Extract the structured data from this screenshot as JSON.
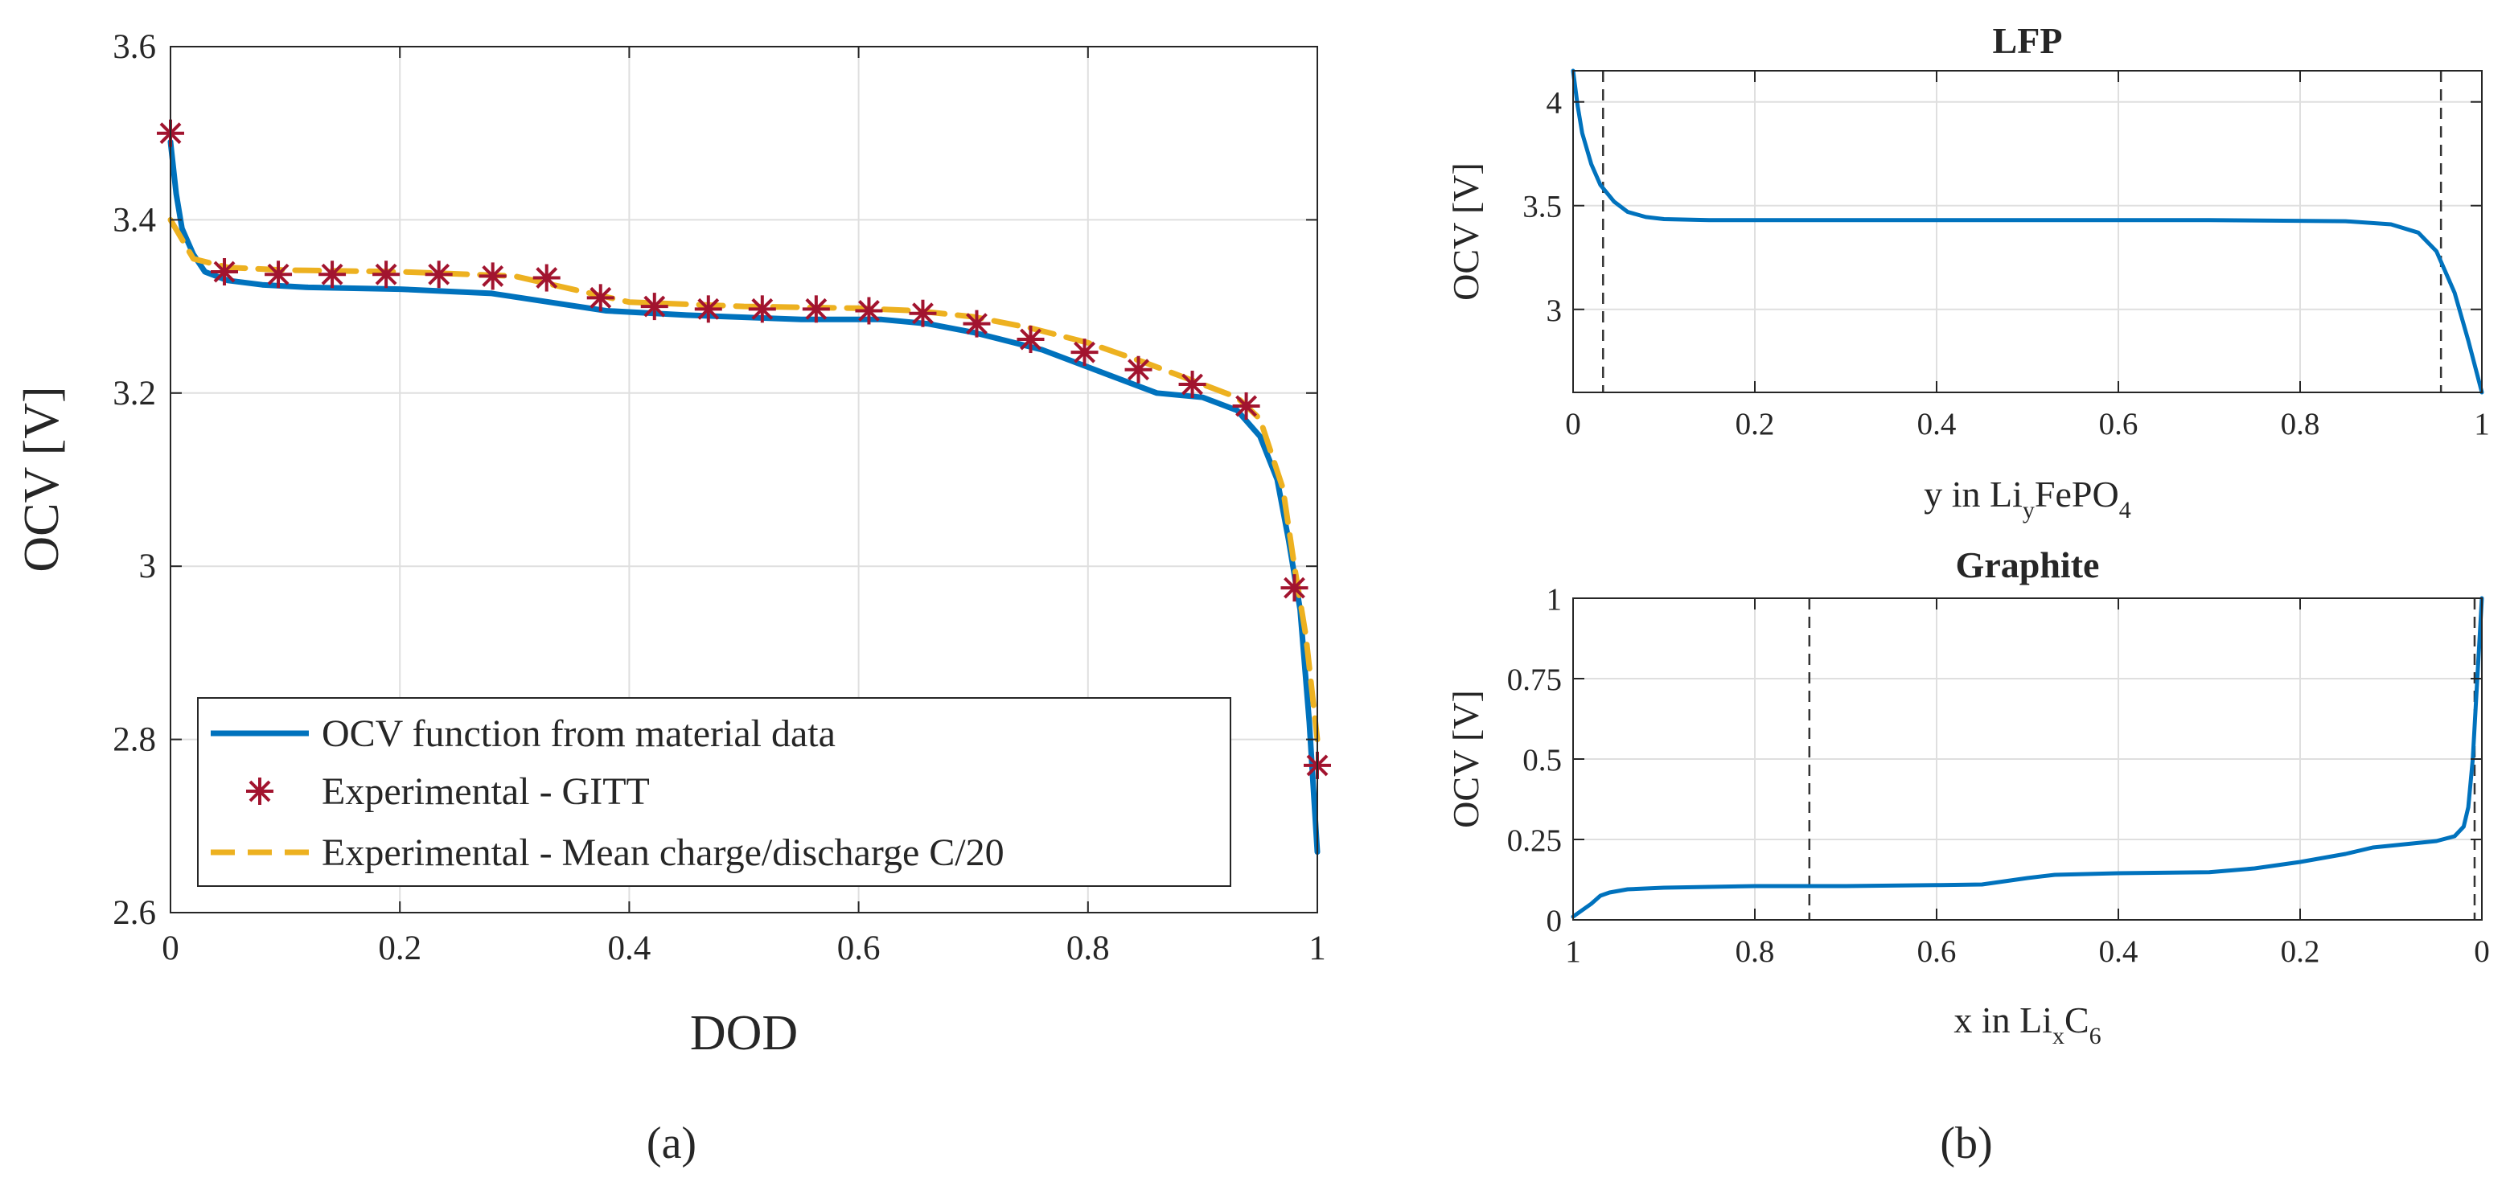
{
  "chart_data": [
    {
      "type": "line",
      "panel_label": "(a)",
      "xlabel": "DOD",
      "ylabel": "OCV [V]",
      "xlim": [
        0,
        1
      ],
      "ylim": [
        2.6,
        3.6
      ],
      "xticks": [
        "0",
        "0.2",
        "0.4",
        "0.6",
        "0.8",
        "1"
      ],
      "yticks": [
        "2.6",
        "2.8",
        "3",
        "3.2",
        "3.4",
        "3.6"
      ],
      "xtick_values": [
        0,
        0.2,
        0.4,
        0.6,
        0.8,
        1
      ],
      "ytick_values": [
        2.6,
        2.8,
        3.0,
        3.2,
        3.4,
        3.6
      ],
      "grid": true,
      "legend_position": "bottom-left",
      "series": [
        {
          "name": "OCV function from material data",
          "style": "solid",
          "color": "#0072BD",
          "x": [
            0,
            0.005,
            0.01,
            0.02,
            0.03,
            0.05,
            0.08,
            0.12,
            0.2,
            0.28,
            0.33,
            0.38,
            0.45,
            0.55,
            0.62,
            0.66,
            0.7,
            0.76,
            0.82,
            0.86,
            0.9,
            0.93,
            0.95,
            0.965,
            0.975,
            0.985,
            0.993,
            1.0
          ],
          "y": [
            3.49,
            3.43,
            3.39,
            3.36,
            3.34,
            3.33,
            3.325,
            3.322,
            3.32,
            3.315,
            3.305,
            3.295,
            3.29,
            3.285,
            3.285,
            3.28,
            3.27,
            3.25,
            3.22,
            3.2,
            3.195,
            3.18,
            3.15,
            3.1,
            3.03,
            2.95,
            2.82,
            2.67
          ]
        },
        {
          "name": "Experimental - GITT",
          "style": "markers",
          "marker": "asterisk",
          "color": "#A2142F",
          "x": [
            0,
            0.047,
            0.094,
            0.141,
            0.188,
            0.234,
            0.281,
            0.328,
            0.375,
            0.422,
            0.469,
            0.516,
            0.563,
            0.609,
            0.656,
            0.703,
            0.75,
            0.797,
            0.844,
            0.891,
            0.938,
            0.98,
            1.0
          ],
          "y": [
            3.5,
            3.34,
            3.337,
            3.337,
            3.337,
            3.337,
            3.335,
            3.333,
            3.31,
            3.3,
            3.297,
            3.297,
            3.297,
            3.295,
            3.292,
            3.28,
            3.262,
            3.247,
            3.227,
            3.21,
            3.185,
            2.975,
            2.77
          ]
        },
        {
          "name": "Experimental - Mean charge/discharge C/20",
          "style": "dashed",
          "color": "#EDB120",
          "x": [
            0,
            0.02,
            0.05,
            0.1,
            0.2,
            0.3,
            0.35,
            0.4,
            0.5,
            0.6,
            0.65,
            0.7,
            0.75,
            0.8,
            0.85,
            0.9,
            0.93,
            0.95,
            0.97,
            0.98,
            0.99,
            1.0
          ],
          "y": [
            3.4,
            3.355,
            3.345,
            3.342,
            3.34,
            3.335,
            3.32,
            3.305,
            3.3,
            3.298,
            3.295,
            3.288,
            3.275,
            3.258,
            3.235,
            3.21,
            3.195,
            3.17,
            3.09,
            3.0,
            2.92,
            2.8
          ]
        }
      ]
    },
    {
      "type": "line",
      "panel_label": "(b)",
      "title": "LFP",
      "xlabel_parts": [
        "y in Li",
        "y",
        "FePO",
        "4"
      ],
      "ylabel": "OCV [V]",
      "xlim": [
        0,
        1
      ],
      "ylim": [
        2.6,
        4.15
      ],
      "xticks": [
        "0",
        "0.2",
        "0.4",
        "0.6",
        "0.8",
        "1"
      ],
      "yticks": [
        "3",
        "3.5",
        "4"
      ],
      "xtick_values": [
        0,
        0.2,
        0.4,
        0.6,
        0.8,
        1
      ],
      "ytick_values": [
        3,
        3.5,
        4
      ],
      "grid": true,
      "vlines": [
        0.033,
        0.955
      ],
      "series": [
        {
          "name": "LFP OCV",
          "style": "solid",
          "color": "#0072BD",
          "x": [
            0,
            0.005,
            0.01,
            0.02,
            0.03,
            0.045,
            0.06,
            0.08,
            0.1,
            0.15,
            0.3,
            0.5,
            0.7,
            0.85,
            0.9,
            0.93,
            0.95,
            0.97,
            0.985,
            1.0
          ],
          "y": [
            4.15,
            3.98,
            3.85,
            3.7,
            3.6,
            3.52,
            3.47,
            3.445,
            3.435,
            3.43,
            3.43,
            3.43,
            3.43,
            3.425,
            3.41,
            3.37,
            3.28,
            3.08,
            2.85,
            2.6
          ]
        }
      ]
    },
    {
      "type": "line",
      "title": "Graphite",
      "xlabel_parts": [
        "x in Li",
        "x",
        "C",
        "6"
      ],
      "ylabel": "OCV [V]",
      "xlim": [
        1,
        0
      ],
      "ylim": [
        0,
        1
      ],
      "xticks": [
        "1",
        "0.8",
        "0.6",
        "0.4",
        "0.2",
        "0"
      ],
      "yticks": [
        "0",
        "0.25",
        "0.5",
        "0.75",
        "1"
      ],
      "xtick_values": [
        1,
        0.8,
        0.6,
        0.4,
        0.2,
        0
      ],
      "ytick_values": [
        0,
        0.25,
        0.5,
        0.75,
        1
      ],
      "grid": true,
      "vlines": [
        0.74,
        0.008
      ],
      "series": [
        {
          "name": "Graphite OCV",
          "style": "solid",
          "color": "#0072BD",
          "x": [
            1.0,
            0.99,
            0.98,
            0.97,
            0.96,
            0.94,
            0.9,
            0.8,
            0.7,
            0.6,
            0.55,
            0.5,
            0.47,
            0.4,
            0.3,
            0.25,
            0.2,
            0.15,
            0.12,
            0.05,
            0.03,
            0.02,
            0.015,
            0.01,
            0.005,
            0.0
          ],
          "y": [
            0.01,
            0.03,
            0.05,
            0.075,
            0.085,
            0.095,
            0.1,
            0.105,
            0.105,
            0.108,
            0.11,
            0.13,
            0.14,
            0.145,
            0.148,
            0.16,
            0.18,
            0.205,
            0.225,
            0.245,
            0.26,
            0.29,
            0.35,
            0.5,
            0.75,
            1.0
          ]
        }
      ]
    }
  ]
}
